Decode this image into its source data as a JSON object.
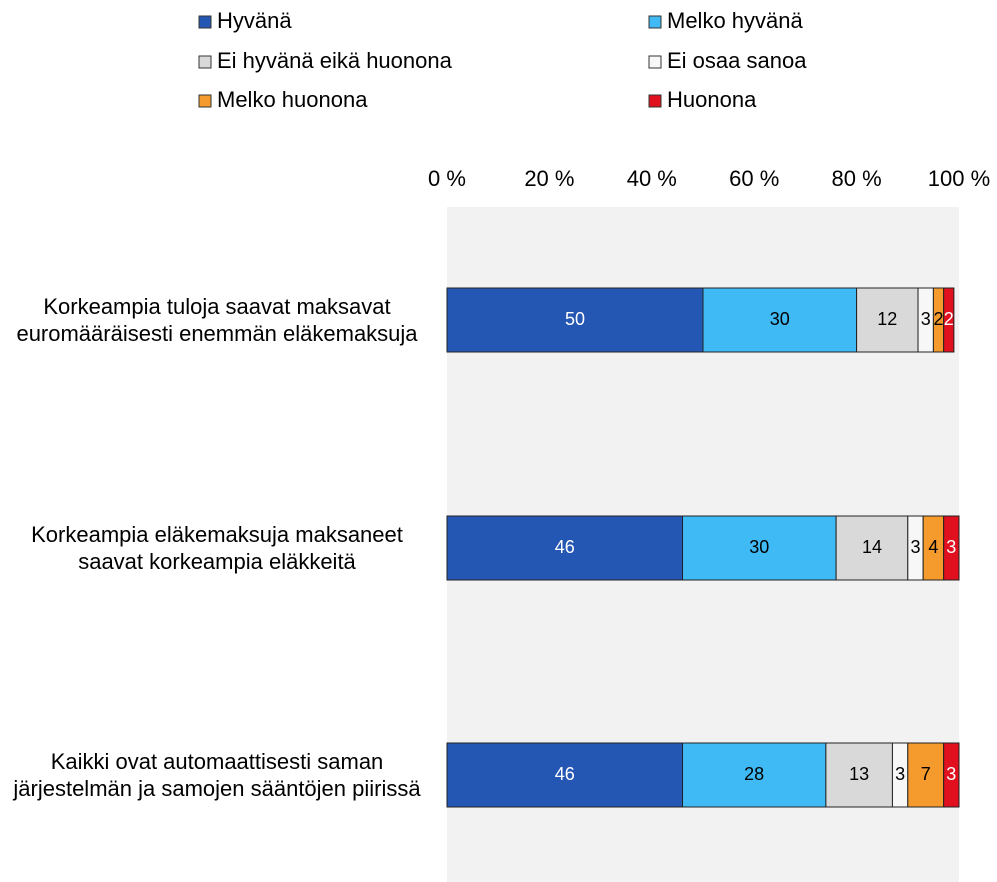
{
  "chart_data": {
    "type": "stacked-bar-horizontal",
    "categories": [
      "Korkeampia tuloja saavat maksavat euromääräisesti enemmän eläkemaksuja",
      "Korkeampia eläkemaksuja maksaneet saavat korkeampia eläkkeitä",
      "Kaikki ovat automaattisesti saman järjestelmän ja samojen sääntöjen piirissä"
    ],
    "series": [
      {
        "name": "Hyvänä",
        "color": "#2457b3",
        "label_color": "#ffffff",
        "values": [
          50,
          46,
          46
        ]
      },
      {
        "name": "Melko hyvänä",
        "color": "#3fbaf5",
        "label_color": "#000000",
        "values": [
          30,
          30,
          28
        ]
      },
      {
        "name": "Ei hyvänä eikä huonona",
        "color": "#d9d9d9",
        "label_color": "#000000",
        "values": [
          12,
          14,
          13
        ]
      },
      {
        "name": "Ei osaa sanoa",
        "color": "#f7f7f7",
        "label_color": "#000000",
        "values": [
          3,
          3,
          3
        ]
      },
      {
        "name": "Melko huonona",
        "color": "#f59a2d",
        "label_color": "#000000",
        "values": [
          2,
          4,
          7
        ]
      },
      {
        "name": "Huonona",
        "color": "#e0101e",
        "label_color": "#ffffff",
        "values": [
          2,
          3,
          3
        ]
      }
    ],
    "xlim": [
      0,
      100
    ],
    "xticks": [
      {
        "value": 0,
        "label": "0 %"
      },
      {
        "value": 20,
        "label": "20 %"
      },
      {
        "value": 40,
        "label": "40 %"
      },
      {
        "value": 60,
        "label": "60 %"
      },
      {
        "value": 80,
        "label": "80 %"
      },
      {
        "value": 100,
        "label": "100 %"
      }
    ],
    "legend": "top"
  }
}
